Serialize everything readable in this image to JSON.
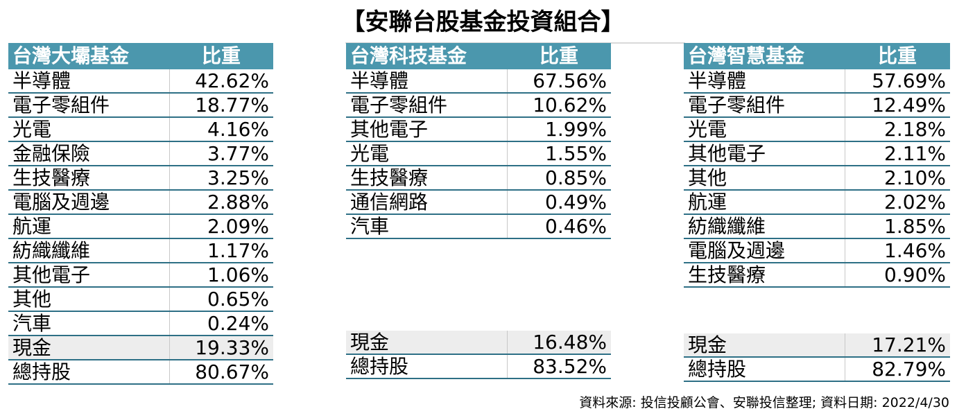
{
  "title": "【安聯台股基金投資組合】",
  "tables": [
    {
      "header_name": "台灣大壩基金",
      "header_value": "比重",
      "rows": [
        {
          "name": "半導體",
          "value": "42.62%"
        },
        {
          "name": "電子零組件",
          "value": "18.77%"
        },
        {
          "name": "光電",
          "value": "4.16%"
        },
        {
          "name": "金融保險",
          "value": "3.77%"
        },
        {
          "name": "生技醫療",
          "value": "3.25%"
        },
        {
          "name": "電腦及週邊",
          "value": "2.88%"
        },
        {
          "name": "航運",
          "value": "2.09%"
        },
        {
          "name": "紡織纖維",
          "value": "1.17%"
        },
        {
          "name": "其他電子",
          "value": "1.06%"
        },
        {
          "name": "其他",
          "value": "0.65%"
        },
        {
          "name": "汽車",
          "value": "0.24%"
        }
      ],
      "cash": {
        "name": "現金",
        "value": "19.33%"
      },
      "holdings": {
        "name": "總持股",
        "value": "80.67%"
      }
    },
    {
      "header_name": "台灣科技基金",
      "header_value": "比重",
      "rows": [
        {
          "name": "半導體",
          "value": "67.56%"
        },
        {
          "name": "電子零組件",
          "value": "10.62%"
        },
        {
          "name": "其他電子",
          "value": "1.99%"
        },
        {
          "name": "光電",
          "value": "1.55%"
        },
        {
          "name": "生技醫療",
          "value": "0.85%"
        },
        {
          "name": "通信網路",
          "value": "0.49%"
        },
        {
          "name": "汽車",
          "value": "0.46%"
        }
      ],
      "cash": {
        "name": "現金",
        "value": "16.48%"
      },
      "holdings": {
        "name": "總持股",
        "value": "83.52%"
      }
    },
    {
      "header_name": "台灣智慧基金",
      "header_value": "比重",
      "rows": [
        {
          "name": "半導體",
          "value": "57.69%"
        },
        {
          "name": "電子零組件",
          "value": "12.49%"
        },
        {
          "name": "光電",
          "value": "2.18%"
        },
        {
          "name": "其他電子",
          "value": "2.11%"
        },
        {
          "name": "其他",
          "value": "2.10%"
        },
        {
          "name": "航運",
          "value": "2.02%"
        },
        {
          "name": "紡織纖維",
          "value": "1.85%"
        },
        {
          "name": "電腦及週邊",
          "value": "1.46%"
        },
        {
          "name": "生技醫療",
          "value": "0.90%"
        }
      ],
      "cash": {
        "name": "現金",
        "value": "17.21%"
      },
      "holdings": {
        "name": "總持股",
        "value": "82.79%"
      }
    }
  ],
  "source_note": "資料來源: 投信投顧公會、安聯投信整理; 資料日期:  2022/4/30",
  "colors": {
    "header_bg": "#4b97ad",
    "row_border": "#2d6f85",
    "cash_bg": "#ededed"
  }
}
